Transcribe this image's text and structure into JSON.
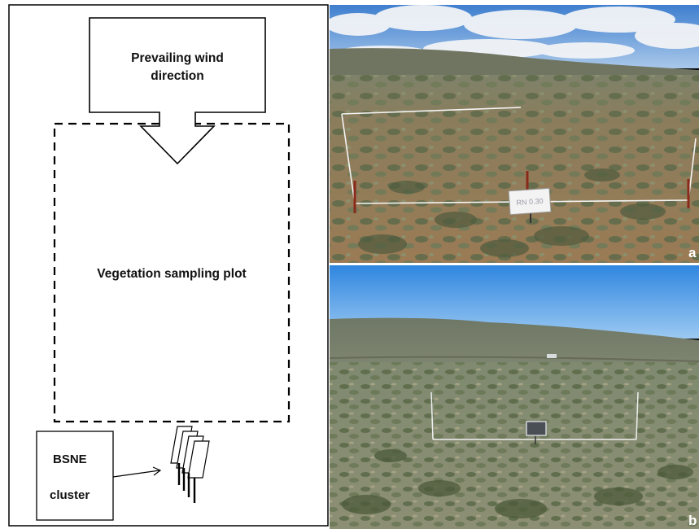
{
  "diagram": {
    "wind_box": {
      "line1": "Prevailing wind",
      "line2": "direction"
    },
    "plot_label": "Vegetation sampling plot",
    "bsne_box": {
      "line1": "BSNE",
      "line2": "cluster"
    }
  },
  "photos": {
    "panel_a": {
      "letter": "a",
      "sign_text": "RN 0.30"
    },
    "panel_b": {
      "letter": "b"
    }
  }
}
